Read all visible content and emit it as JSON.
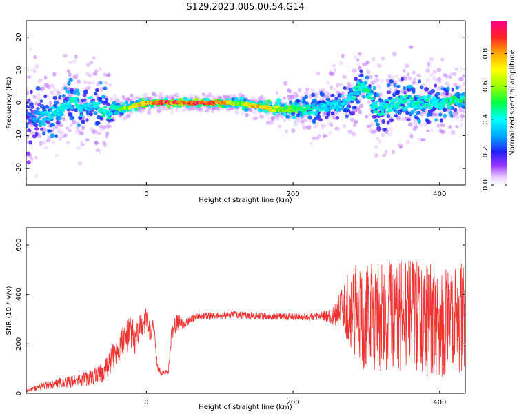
{
  "title": "S129.2023.085.00.54.G14",
  "chart_data": [
    {
      "type": "heatmap",
      "xlabel": "Height of straight line (km)",
      "ylabel": "Frequency (Hz)",
      "xlim": [
        -164,
        435
      ],
      "ylim": [
        -25,
        25
      ],
      "xticks": [
        0,
        200,
        400
      ],
      "yticks": [
        -20,
        -10,
        0,
        10,
        20
      ],
      "colorbar": {
        "label": "Normalized spectral amplitude",
        "ticks": [
          "0.0",
          "0.2",
          "0.4",
          "0.6",
          "0.8"
        ],
        "tick_values": [
          0.0,
          0.2,
          0.4,
          0.6,
          0.8
        ],
        "range": [
          0,
          1
        ]
      },
      "ridge": [
        {
          "x": -160,
          "f": -4,
          "spread": 12,
          "amp": 0.25
        },
        {
          "x": -140,
          "f": -4,
          "spread": 6,
          "amp": 0.4
        },
        {
          "x": -120,
          "f": -3,
          "spread": 5,
          "amp": 0.45
        },
        {
          "x": -100,
          "f": 1,
          "spread": 6,
          "amp": 0.45
        },
        {
          "x": -90,
          "f": -2,
          "spread": 6,
          "amp": 0.45
        },
        {
          "x": -75,
          "f": 0,
          "spread": 6,
          "amp": 0.4
        },
        {
          "x": -60,
          "f": -2,
          "spread": 6,
          "amp": 0.45
        },
        {
          "x": -50,
          "f": -4,
          "spread": 6,
          "amp": 0.45
        },
        {
          "x": -45,
          "f": -1,
          "spread": 2,
          "amp": 0.45
        },
        {
          "x": -35,
          "f": -2,
          "spread": 1.5,
          "amp": 0.6
        },
        {
          "x": -20,
          "f": -1,
          "spread": 1.2,
          "amp": 0.7
        },
        {
          "x": 0,
          "f": 0,
          "spread": 1.0,
          "amp": 0.85
        },
        {
          "x": 25,
          "f": 0,
          "spread": 1.0,
          "amp": 1.0
        },
        {
          "x": 50,
          "f": 0,
          "spread": 1.0,
          "amp": 0.95
        },
        {
          "x": 75,
          "f": 0,
          "spread": 1.0,
          "amp": 0.95
        },
        {
          "x": 100,
          "f": 0,
          "spread": 1.0,
          "amp": 0.95
        },
        {
          "x": 125,
          "f": 0,
          "spread": 1.5,
          "amp": 0.6
        },
        {
          "x": 150,
          "f": -1,
          "spread": 1.5,
          "amp": 0.85
        },
        {
          "x": 175,
          "f": -2,
          "spread": 2,
          "amp": 0.7
        },
        {
          "x": 200,
          "f": -2,
          "spread": 3,
          "amp": 0.6
        },
        {
          "x": 225,
          "f": -2,
          "spread": 4,
          "amp": 0.45
        },
        {
          "x": 250,
          "f": -1,
          "spread": 5,
          "amp": 0.4
        },
        {
          "x": 275,
          "f": 0,
          "spread": 6,
          "amp": 0.4
        },
        {
          "x": 290,
          "f": 5,
          "spread": 5,
          "amp": 0.45
        },
        {
          "x": 300,
          "f": 4,
          "spread": 4,
          "amp": 0.5
        },
        {
          "x": 315,
          "f": -3,
          "spread": 7,
          "amp": 0.45
        },
        {
          "x": 340,
          "f": 0,
          "spread": 6,
          "amp": 0.45
        },
        {
          "x": 370,
          "f": 0,
          "spread": 6,
          "amp": 0.45
        },
        {
          "x": 400,
          "f": 0,
          "spread": 5,
          "amp": 0.45
        },
        {
          "x": 430,
          "f": 1,
          "spread": 4,
          "amp": 0.5
        }
      ]
    },
    {
      "type": "line",
      "xlabel": "Height of straight line (km)",
      "ylabel": "SNR (10 * v/v)",
      "xlim": [
        -164,
        435
      ],
      "ylim": [
        0,
        670
      ],
      "xticks": [
        0,
        200,
        400
      ],
      "yticks": [
        0,
        200,
        400,
        600
      ],
      "color": "#ee3333",
      "series": [
        {
          "x": [
            -164,
            -140,
            -120,
            -100,
            -80,
            -60,
            -50,
            -40,
            -30,
            -20,
            -15,
            -10,
            -5,
            0,
            5,
            10,
            15,
            20,
            25,
            30,
            35,
            40,
            45,
            50,
            55,
            60,
            70,
            80,
            100,
            120,
            140,
            160,
            180,
            200,
            220,
            240,
            255,
            265,
            275,
            285,
            300,
            320,
            340,
            360,
            380,
            400,
            420,
            435
          ],
          "y": [
            10,
            30,
            40,
            50,
            60,
            80,
            120,
            180,
            220,
            250,
            200,
            260,
            280,
            300,
            240,
            270,
            110,
            80,
            85,
            90,
            260,
            280,
            290,
            280,
            285,
            300,
            310,
            312,
            315,
            318,
            315,
            312,
            310,
            308,
            310,
            312,
            315,
            330,
            340,
            320,
            300,
            310,
            320,
            315,
            300,
            290,
            300,
            310
          ],
          "noise": [
            5,
            15,
            20,
            25,
            30,
            40,
            50,
            60,
            70,
            70,
            60,
            60,
            50,
            50,
            40,
            30,
            20,
            10,
            10,
            10,
            40,
            40,
            30,
            20,
            20,
            15,
            15,
            15,
            15,
            15,
            15,
            15,
            15,
            15,
            15,
            20,
            40,
            80,
            150,
            200,
            220,
            220,
            230,
            230,
            230,
            230,
            220,
            220
          ]
        }
      ]
    }
  ]
}
